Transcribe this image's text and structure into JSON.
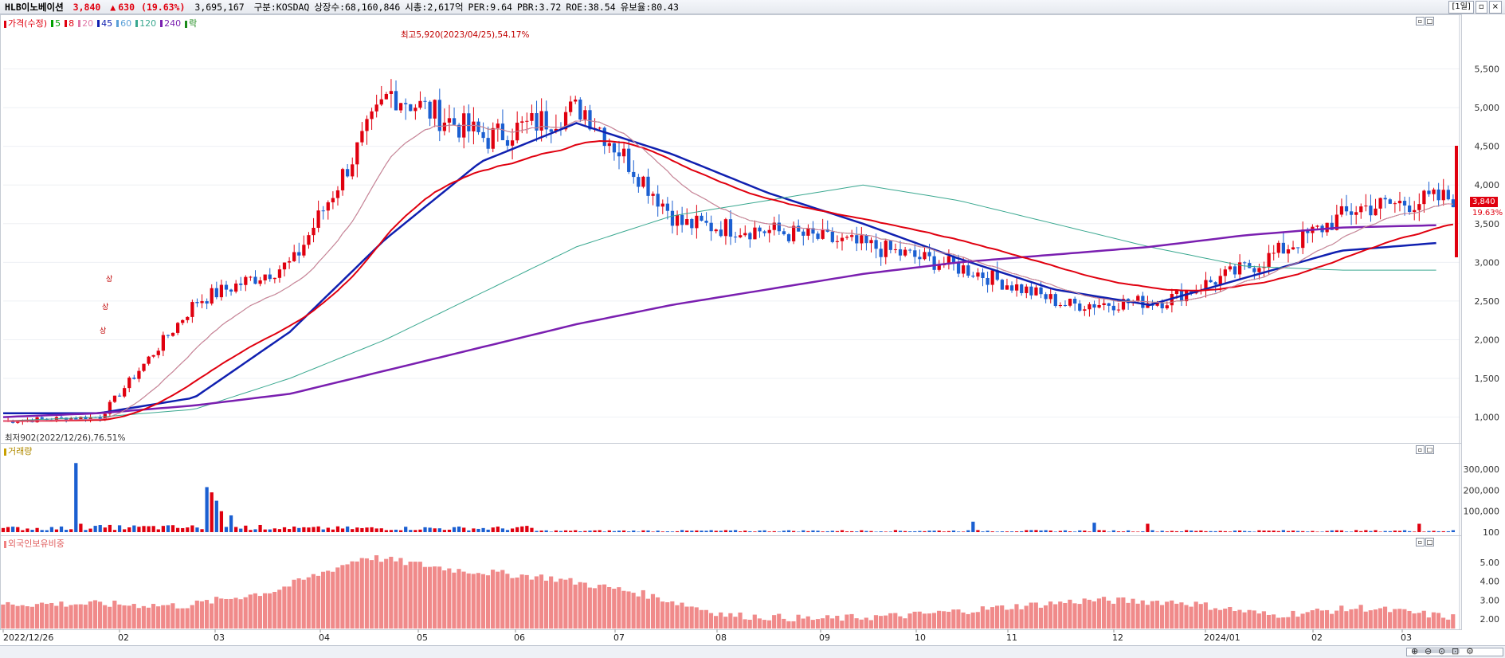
{
  "header": {
    "code": "HLB이노베이션",
    "price": "3,840",
    "change_arrow": "▲",
    "change": "630",
    "change_pct": "(19.63%)",
    "volume": "3,695,167",
    "market": "구분:KOSDAQ",
    "shares": "상장수:68,160,846",
    "market_cap": "시총:2,617억",
    "per": "PER:9.64",
    "pbr": "PBR:3.72",
    "roe": "ROE:38.54",
    "reserve": "유보율:80.43",
    "period_btn": "[1일]",
    "colors": {
      "up": "#e0000f",
      "down": "#1b5fd1"
    }
  },
  "price_panel": {
    "legend": [
      {
        "label": "가격(수정)",
        "color": "#e0000f"
      },
      {
        "label": "5",
        "color": "#00a000"
      },
      {
        "label": "8",
        "color": "#e0000f"
      },
      {
        "label": "20",
        "color": "#e07aa8"
      },
      {
        "label": "45",
        "color": "#1020b0"
      },
      {
        "label": "60",
        "color": "#5aa0d8"
      },
      {
        "label": "120",
        "color": "#3aa890"
      },
      {
        "label": "240",
        "color": "#7a1fb0"
      },
      {
        "label": "락",
        "color": "#1a8a1a"
      }
    ],
    "high_note": "최고5,920(2023/04/25),54.17%",
    "low_note": "최저902(2022/12/26),76.51%",
    "limit_up_label": "상",
    "current_price_label": "3,840",
    "current_pct_label": "19.63%",
    "y_ticks": [
      "1,000",
      "1,500",
      "2,000",
      "2,500",
      "3,000",
      "3,500",
      "4,000",
      "4,500",
      "5,000",
      "5,500"
    ]
  },
  "volume_panel": {
    "legend": "거래량",
    "legend_color": "#c8a000",
    "y_ticks": [
      "100",
      "100,000",
      "200,000",
      "300,000"
    ]
  },
  "foreign_panel": {
    "legend": "외국인보유비중",
    "legend_color": "#f08080",
    "y_ticks": [
      "2.00",
      "3.00",
      "4.00",
      "5.00"
    ]
  },
  "x_axis_labels": [
    "2022/12/26",
    "02",
    "03",
    "04",
    "05",
    "06",
    "07",
    "08",
    "09",
    "10",
    "11",
    "12",
    "2024/01",
    "02",
    "03"
  ],
  "chart_data": [
    {
      "type": "candlestick",
      "title": "HLB이노베이션",
      "x": [
        "2022-12",
        "2023-01",
        "2023-02",
        "2023-03",
        "2023-04",
        "2023-05",
        "2023-06",
        "2023-07",
        "2023-08",
        "2023-09",
        "2023-10",
        "2023-11",
        "2023-12",
        "2024-01",
        "2024-02",
        "2024-03"
      ],
      "close": [
        950,
        1000,
        2500,
        3000,
        5200,
        4600,
        5000,
        3500,
        3400,
        3200,
        2900,
        2450,
        2500,
        3000,
        3700,
        3840
      ],
      "ma": [
        {
          "name": "45",
          "values": [
            1050,
            1050,
            1250,
            2100,
            3300,
            4300,
            4800,
            4400,
            3900,
            3500,
            3050,
            2650,
            2450,
            2800,
            3150,
            3250
          ]
        },
        {
          "name": "120",
          "values": [
            950,
            1000,
            1100,
            1500,
            2000,
            2600,
            3200,
            3600,
            3800,
            4000,
            3800,
            3500,
            3200,
            2950,
            2900,
            2900
          ]
        },
        {
          "name": "240",
          "values": [
            1000,
            1050,
            1150,
            1300,
            1600,
            1900,
            2200,
            2450,
            2650,
            2850,
            3000,
            3100,
            3200,
            3350,
            3450,
            3480
          ]
        }
      ],
      "ylim": [
        800,
        6000
      ],
      "annotations": [
        "최고5,920(2023/04/25),54.17%",
        "최저902(2022/12/26),76.51%"
      ]
    },
    {
      "type": "bar",
      "title": "거래량",
      "ylim": [
        0,
        350000
      ],
      "note": "spikes near 2023-01, 2023-04, 2023-12, 2024-02, 2024-03"
    },
    {
      "type": "bar",
      "title": "외국인보유비중",
      "ylim": [
        1.5,
        6.0
      ],
      "values_range": [
        2.0,
        5.8
      ]
    }
  ]
}
